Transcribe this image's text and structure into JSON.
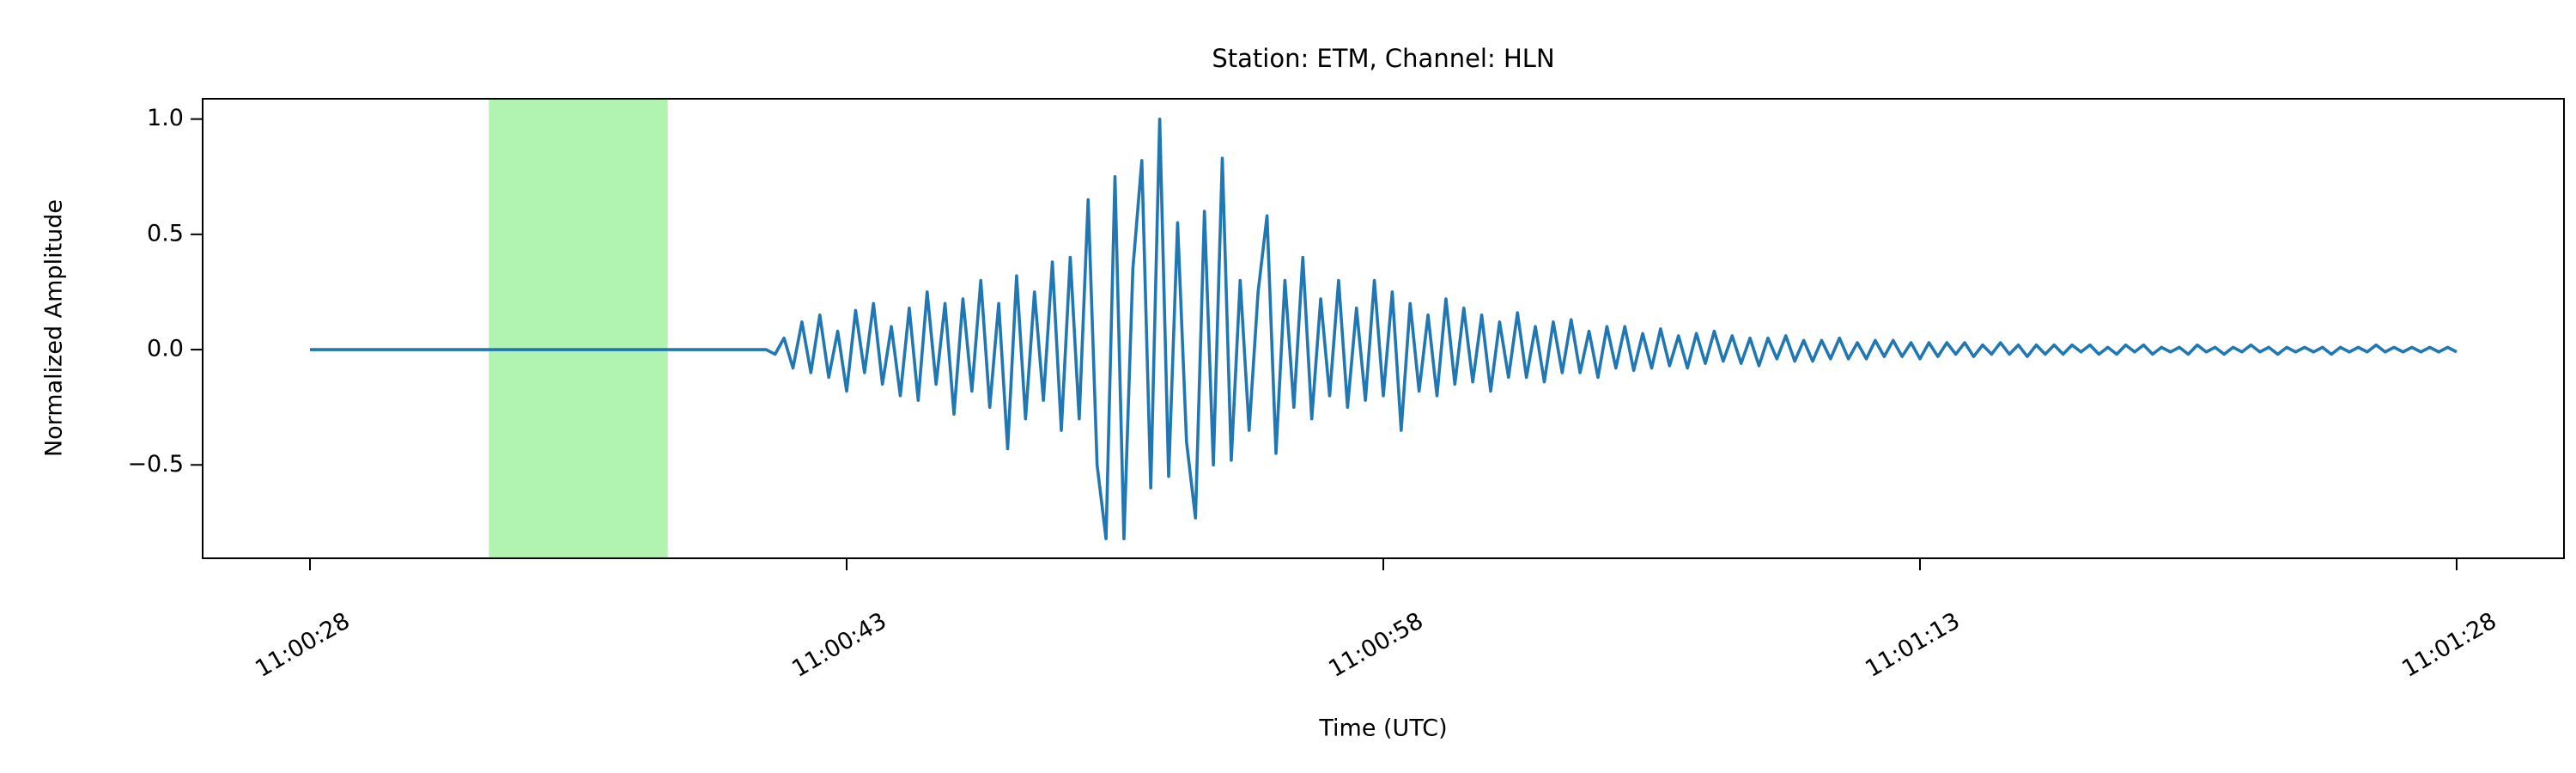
{
  "chart_data": {
    "type": "line",
    "title": "Station: ETM, Channel: HLN",
    "xlabel": "Time (UTC)",
    "ylabel": "Normalized Amplitude",
    "color": "#1f77b4",
    "span": {
      "x": [
        39633,
        39638
      ],
      "color": "#90ee90",
      "alpha": 0.7
    },
    "xlim": [
      39625,
      39691
    ],
    "ylim": [
      -0.905,
      1.088
    ],
    "xticks": [
      {
        "value": 39628,
        "label": "11:00:28"
      },
      {
        "value": 39643,
        "label": "11:00:43"
      },
      {
        "value": 39658,
        "label": "11:00:58"
      },
      {
        "value": 39673,
        "label": "11:01:13"
      },
      {
        "value": 39688,
        "label": "11:01:28"
      }
    ],
    "yticks": [
      {
        "value": -0.5,
        "label": "−0.5"
      },
      {
        "value": 0,
        "label": "0.0"
      },
      {
        "value": 0.5,
        "label": "0.5"
      },
      {
        "value": 1,
        "label": "1.0"
      }
    ],
    "x": [
      39628,
      39628.25,
      39628.5,
      39628.75,
      39629,
      39629.25,
      39629.5,
      39629.75,
      39630,
      39630.25,
      39630.5,
      39630.75,
      39631,
      39631.25,
      39631.5,
      39631.75,
      39632,
      39632.25,
      39632.5,
      39632.75,
      39633,
      39633.25,
      39633.5,
      39633.75,
      39634,
      39634.25,
      39634.5,
      39634.75,
      39635,
      39635.25,
      39635.5,
      39635.75,
      39636,
      39636.25,
      39636.5,
      39636.75,
      39637,
      39637.25,
      39637.5,
      39637.75,
      39638,
      39638.25,
      39638.5,
      39638.75,
      39639,
      39639.25,
      39639.5,
      39639.75,
      39640,
      39640.25,
      39640.5,
      39640.75,
      39641,
      39641.25,
      39641.5,
      39641.75,
      39642,
      39642.25,
      39642.5,
      39642.75,
      39643,
      39643.25,
      39643.5,
      39643.75,
      39644,
      39644.25,
      39644.5,
      39644.75,
      39645,
      39645.25,
      39645.5,
      39645.75,
      39646,
      39646.25,
      39646.5,
      39646.75,
      39647,
      39647.25,
      39647.5,
      39647.75,
      39648,
      39648.25,
      39648.5,
      39648.75,
      39649,
      39649.25,
      39649.5,
      39649.75,
      39650,
      39650.25,
      39650.5,
      39650.75,
      39651,
      39651.25,
      39651.5,
      39651.75,
      39652,
      39652.25,
      39652.5,
      39652.75,
      39653,
      39653.25,
      39653.5,
      39653.75,
      39654,
      39654.25,
      39654.5,
      39654.75,
      39655,
      39655.25,
      39655.5,
      39655.75,
      39656,
      39656.25,
      39656.5,
      39656.75,
      39657,
      39657.25,
      39657.5,
      39657.75,
      39658,
      39658.25,
      39658.5,
      39658.75,
      39659,
      39659.25,
      39659.5,
      39659.75,
      39660,
      39660.25,
      39660.5,
      39660.75,
      39661,
      39661.25,
      39661.5,
      39661.75,
      39662,
      39662.25,
      39662.5,
      39662.75,
      39663,
      39663.25,
      39663.5,
      39663.75,
      39664,
      39664.25,
      39664.5,
      39664.75,
      39665,
      39665.25,
      39665.5,
      39665.75,
      39666,
      39666.25,
      39666.5,
      39666.75,
      39667,
      39667.25,
      39667.5,
      39667.75,
      39668,
      39668.25,
      39668.5,
      39668.75,
      39669,
      39669.25,
      39669.5,
      39669.75,
      39670,
      39670.25,
      39670.5,
      39670.75,
      39671,
      39671.25,
      39671.5,
      39671.75,
      39672,
      39672.25,
      39672.5,
      39672.75,
      39673,
      39673.25,
      39673.5,
      39673.75,
      39674,
      39674.25,
      39674.5,
      39674.75,
      39675,
      39675.25,
      39675.5,
      39675.75,
      39676,
      39676.25,
      39676.5,
      39676.75,
      39677,
      39677.25,
      39677.5,
      39677.75,
      39678,
      39678.25,
      39678.5,
      39678.75,
      39679,
      39679.25,
      39679.5,
      39679.75,
      39680,
      39680.25,
      39680.5,
      39680.75,
      39681,
      39681.25,
      39681.5,
      39681.75,
      39682,
      39682.25,
      39682.5,
      39682.75,
      39683,
      39683.25,
      39683.5,
      39683.75,
      39684,
      39684.25,
      39684.5,
      39684.75,
      39685,
      39685.25,
      39685.5,
      39685.75,
      39686,
      39686.25,
      39686.5,
      39686.75,
      39687,
      39687.25,
      39687.5,
      39687.75,
      39688
    ],
    "values": [
      0,
      0,
      0,
      0,
      0,
      0,
      0,
      0,
      0,
      0,
      0,
      0,
      0,
      0,
      0,
      0,
      0,
      0,
      0,
      0,
      0,
      0,
      0,
      0,
      0,
      0,
      0,
      0,
      0,
      0,
      0,
      0,
      0,
      0,
      0,
      0,
      0,
      0,
      0,
      0,
      0,
      0,
      0,
      0,
      0,
      0,
      0,
      0,
      0,
      0,
      0,
      0,
      -0.02,
      0.05,
      -0.08,
      0.12,
      -0.1,
      0.15,
      -0.12,
      0.08,
      -0.18,
      0.17,
      -0.1,
      0.2,
      -0.15,
      0.1,
      -0.2,
      0.18,
      -0.22,
      0.25,
      -0.15,
      0.2,
      -0.28,
      0.22,
      -0.18,
      0.3,
      -0.25,
      0.2,
      -0.43,
      0.32,
      -0.3,
      0.25,
      -0.22,
      0.38,
      -0.35,
      0.4,
      -0.3,
      0.65,
      -0.5,
      -0.82,
      0.75,
      -0.82,
      0.35,
      0.82,
      -0.6,
      1.0,
      -0.55,
      0.55,
      -0.4,
      -0.73,
      0.6,
      -0.5,
      0.83,
      -0.48,
      0.3,
      -0.35,
      0.25,
      0.58,
      -0.45,
      0.3,
      -0.25,
      0.4,
      -0.3,
      0.22,
      -0.2,
      0.3,
      -0.25,
      0.18,
      -0.22,
      0.3,
      -0.2,
      0.25,
      -0.35,
      0.2,
      -0.18,
      0.15,
      -0.2,
      0.22,
      -0.15,
      0.18,
      -0.14,
      0.15,
      -0.18,
      0.12,
      -0.12,
      0.16,
      -0.12,
      0.1,
      -0.14,
      0.12,
      -0.1,
      0.13,
      -0.1,
      0.08,
      -0.12,
      0.1,
      -0.08,
      0.1,
      -0.09,
      0.07,
      -0.08,
      0.09,
      -0.07,
      0.06,
      -0.08,
      0.07,
      -0.06,
      0.08,
      -0.05,
      0.06,
      -0.06,
      0.05,
      -0.07,
      0.05,
      -0.04,
      0.06,
      -0.05,
      0.04,
      -0.05,
      0.04,
      -0.04,
      0.05,
      -0.04,
      0.03,
      -0.04,
      0.04,
      -0.03,
      0.04,
      -0.03,
      0.03,
      -0.04,
      0.03,
      -0.03,
      0.03,
      -0.02,
      0.03,
      -0.03,
      0.02,
      -0.02,
      0.03,
      -0.02,
      0.02,
      -0.03,
      0.02,
      -0.02,
      0.02,
      -0.02,
      0.02,
      -0.01,
      0.02,
      -0.02,
      0.01,
      -0.02,
      0.02,
      -0.01,
      0.02,
      -0.02,
      0.01,
      -0.01,
      0.01,
      -0.02,
      0.02,
      -0.01,
      0.01,
      -0.02,
      0.01,
      -0.01,
      0.02,
      -0.01,
      0.01,
      -0.02,
      0.01,
      -0.01,
      0.01,
      -0.01,
      0.01,
      -0.02,
      0.01,
      -0.01,
      0.01,
      -0.01,
      0.02,
      -0.01,
      0.01,
      -0.01,
      0.01,
      -0.01,
      0.01,
      -0.01,
      0.01,
      -0.01
    ]
  }
}
